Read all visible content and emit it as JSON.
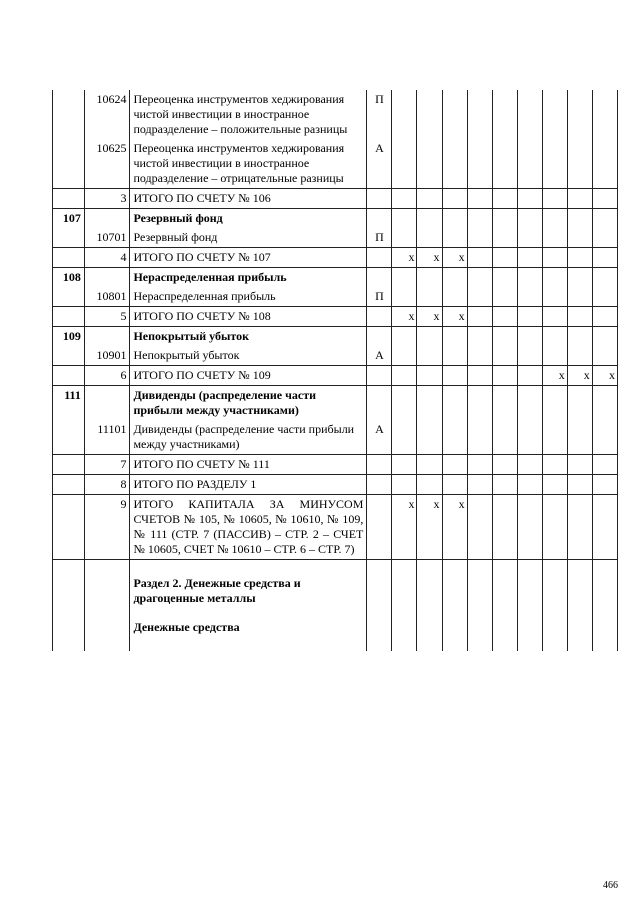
{
  "rows": [
    {
      "type": "data",
      "c1": "",
      "c2": "10624",
      "c3": "Переоценка инструментов хеджирования чистой инвестиции в иностранное подразделение – положительные разницы",
      "c4": "П",
      "border": "nb-top nb-bottom",
      "marks": []
    },
    {
      "type": "data",
      "c1": "",
      "c2": "10625",
      "c3": "Переоценка инструментов хеджирования чистой инвестиции в иностранное подразделение – отрицательные разницы",
      "c4": "А",
      "border": "nb-top",
      "marks": []
    },
    {
      "type": "total",
      "c1": "",
      "c2": "3",
      "c3": "ИТОГО ПО СЧЕТУ № 106",
      "c4": "",
      "marks": []
    },
    {
      "type": "head",
      "c1": "107",
      "c2": "",
      "c3": "Резервный фонд",
      "c4": "",
      "border": "nb-bottom",
      "marks": []
    },
    {
      "type": "data",
      "c1": "",
      "c2": "10701",
      "c3": "Резервный фонд",
      "c4": "П",
      "border": "nb-top",
      "marks": []
    },
    {
      "type": "total",
      "c1": "",
      "c2": "4",
      "c3": "ИТОГО ПО СЧЕТУ № 107",
      "c4": "",
      "marks": [
        1,
        2,
        3
      ]
    },
    {
      "type": "head",
      "c1": "108",
      "c2": "",
      "c3": "Нераспределенная прибыль",
      "c4": "",
      "border": "nb-bottom",
      "marks": []
    },
    {
      "type": "data",
      "c1": "",
      "c2": "10801",
      "c3": "Нераспределенная прибыль",
      "c4": "П",
      "border": "nb-top",
      "marks": []
    },
    {
      "type": "total",
      "c1": "",
      "c2": "5",
      "c3": "ИТОГО ПО СЧЕТУ № 108",
      "c4": "",
      "marks": [
        1,
        2,
        3
      ]
    },
    {
      "type": "head",
      "c1": "109",
      "c2": "",
      "c3": "Непокрытый убыток",
      "c4": "",
      "border": "nb-bottom",
      "marks": []
    },
    {
      "type": "data",
      "c1": "",
      "c2": "10901",
      "c3": "Непокрытый убыток",
      "c4": "А",
      "border": "nb-top",
      "marks": []
    },
    {
      "type": "total",
      "c1": "",
      "c2": "6",
      "c3": "ИТОГО ПО СЧЕТУ № 109",
      "c4": "",
      "marks": [
        7,
        8,
        9
      ]
    },
    {
      "type": "head",
      "c1": "111",
      "c2": "",
      "c3": "Дивиденды (распределение части прибыли между участниками)",
      "c4": "",
      "border": "nb-bottom",
      "marks": []
    },
    {
      "type": "data",
      "c1": "",
      "c2": "11101",
      "c3": "Дивиденды (распределение части прибыли между участниками)",
      "c4": "А",
      "border": "nb-top",
      "marks": []
    },
    {
      "type": "total",
      "c1": "",
      "c2": "7",
      "c3": "ИТОГО ПО СЧЕТУ № 111",
      "c4": "",
      "marks": []
    },
    {
      "type": "total",
      "c1": "",
      "c2": "8",
      "c3": "ИТОГО ПО РАЗДЕЛУ 1",
      "c4": "",
      "marks": []
    },
    {
      "type": "total",
      "c1": "",
      "c2": "9",
      "c3": "ИТОГО КАПИТАЛА ЗА МИНУСОМ СЧЕТОВ № 105, № 10605, № 10610, № 109, № 111 (СТР. 7 (ПАССИВ) – СТР. 2 – СЧЕТ № 10605, СЧЕТ № 10610 – СТР. 6 – СТР. 7)",
      "c4": "",
      "marks": [
        1,
        2,
        3
      ],
      "jst": true
    },
    {
      "type": "section",
      "c3a": "Раздел 2. Денежные средства и драгоценные металлы",
      "c3b": "Денежные средства"
    }
  ],
  "mark": "х",
  "pageNumber": "466"
}
